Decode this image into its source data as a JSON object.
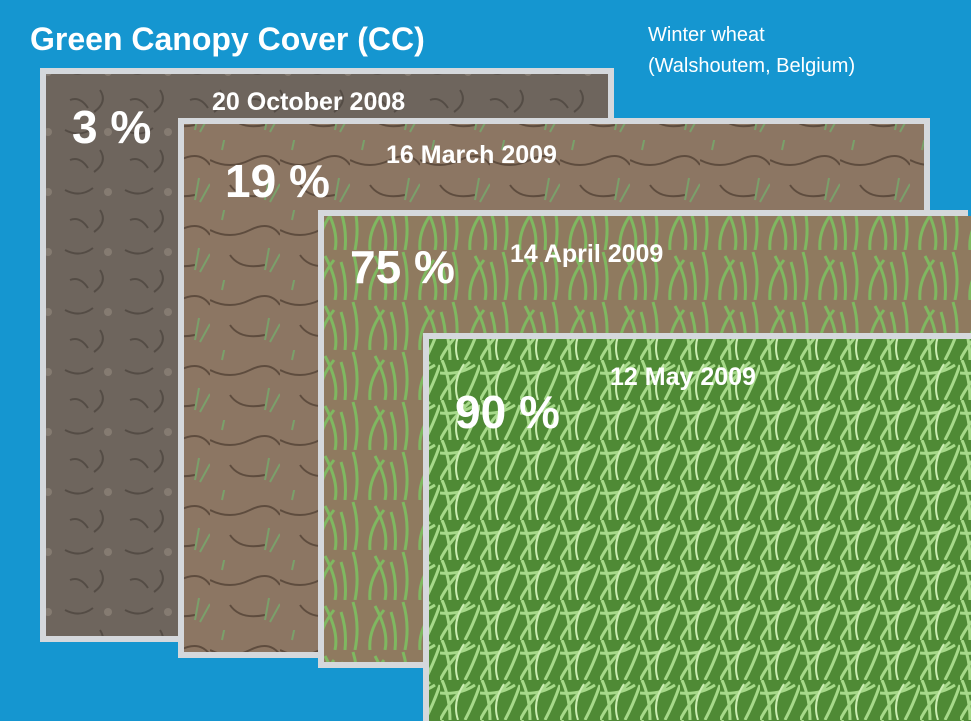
{
  "header": {
    "title": "Green Canopy Cover (CC)",
    "subtitle": [
      "Winter wheat",
      "(Walshoutem, Belgium)"
    ]
  },
  "photos": [
    {
      "label": "3 %",
      "date": "20 October 2008"
    },
    {
      "label": "19 %",
      "date": "16 March 2009"
    },
    {
      "label": "75 %",
      "date": "14 April 2009"
    },
    {
      "label": "90 %",
      "date": "12 May 2009"
    }
  ]
}
